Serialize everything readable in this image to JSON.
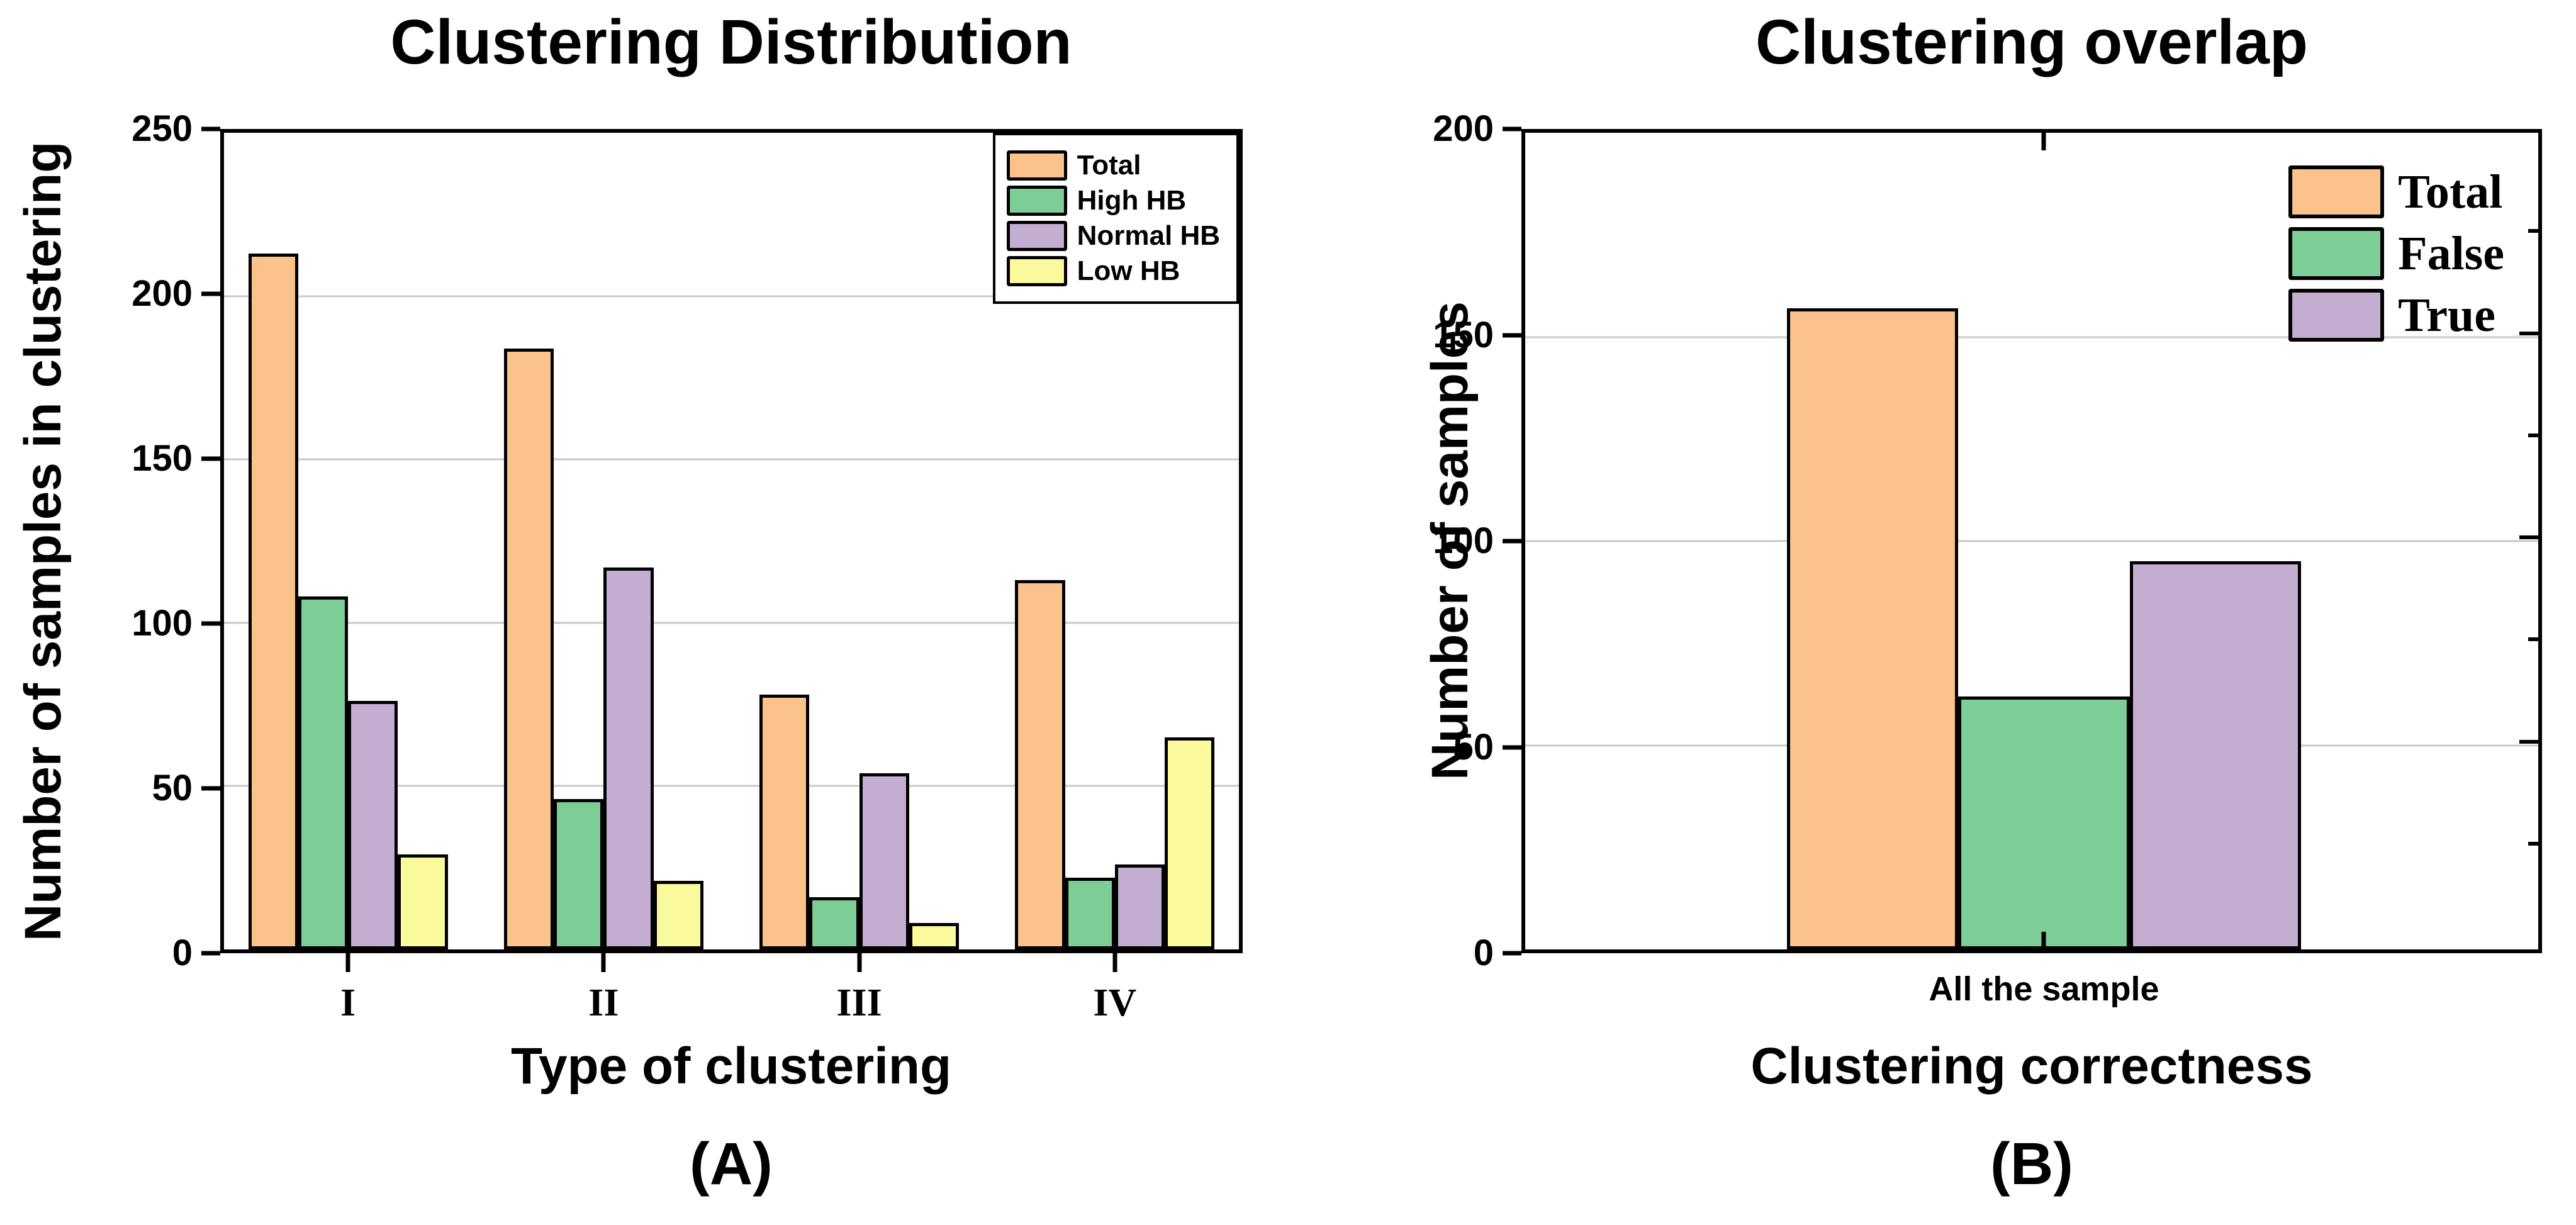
{
  "panels": [
    {
      "panel_label": "(A)"
    },
    {
      "panel_label": "(B)"
    }
  ],
  "chart_data": [
    {
      "type": "bar",
      "title": "Clustering Distribution",
      "xlabel": "Type of clustering",
      "ylabel": "Number of samples in clustering",
      "categories": [
        "I",
        "II",
        "III",
        "IV"
      ],
      "series": [
        {
          "name": "Total",
          "color": "#FBC28C",
          "values": [
            213,
            184,
            78,
            113
          ]
        },
        {
          "name": "High HB",
          "color": "#7DCD96",
          "values": [
            108,
            46,
            16,
            22
          ]
        },
        {
          "name": "Normal HB",
          "color": "#C3AED2",
          "values": [
            76,
            117,
            54,
            26
          ]
        },
        {
          "name": "Low HB",
          "color": "#FAFA9D",
          "values": [
            29,
            21,
            8,
            65
          ]
        }
      ],
      "ylim": [
        0,
        250
      ],
      "ytick_step": 50,
      "grid": true,
      "legend_position": "top-right",
      "legend_frame": true,
      "bar_width_frac": 0.195,
      "x_tick_style": "out",
      "right_minor_ticks": false
    },
    {
      "type": "bar",
      "title": "Clustering overlap",
      "xlabel": "Clustering correctness",
      "ylabel": "Number of samples",
      "categories": [
        "All the sample"
      ],
      "series": [
        {
          "name": "Total",
          "color": "#FBC28C",
          "values": [
            157
          ]
        },
        {
          "name": "False",
          "color": "#7DCD96",
          "values": [
            62
          ]
        },
        {
          "name": "True",
          "color": "#C3AED2",
          "values": [
            95
          ]
        }
      ],
      "ylim": [
        0,
        200
      ],
      "ytick_step": 50,
      "grid": true,
      "legend_position": "top-right",
      "legend_frame": false,
      "bar_width_frac": 0.168,
      "category_center_frac": 0.512,
      "x_tick_style": "in",
      "right_minor_ticks": true,
      "right_minor_step": 25
    }
  ]
}
